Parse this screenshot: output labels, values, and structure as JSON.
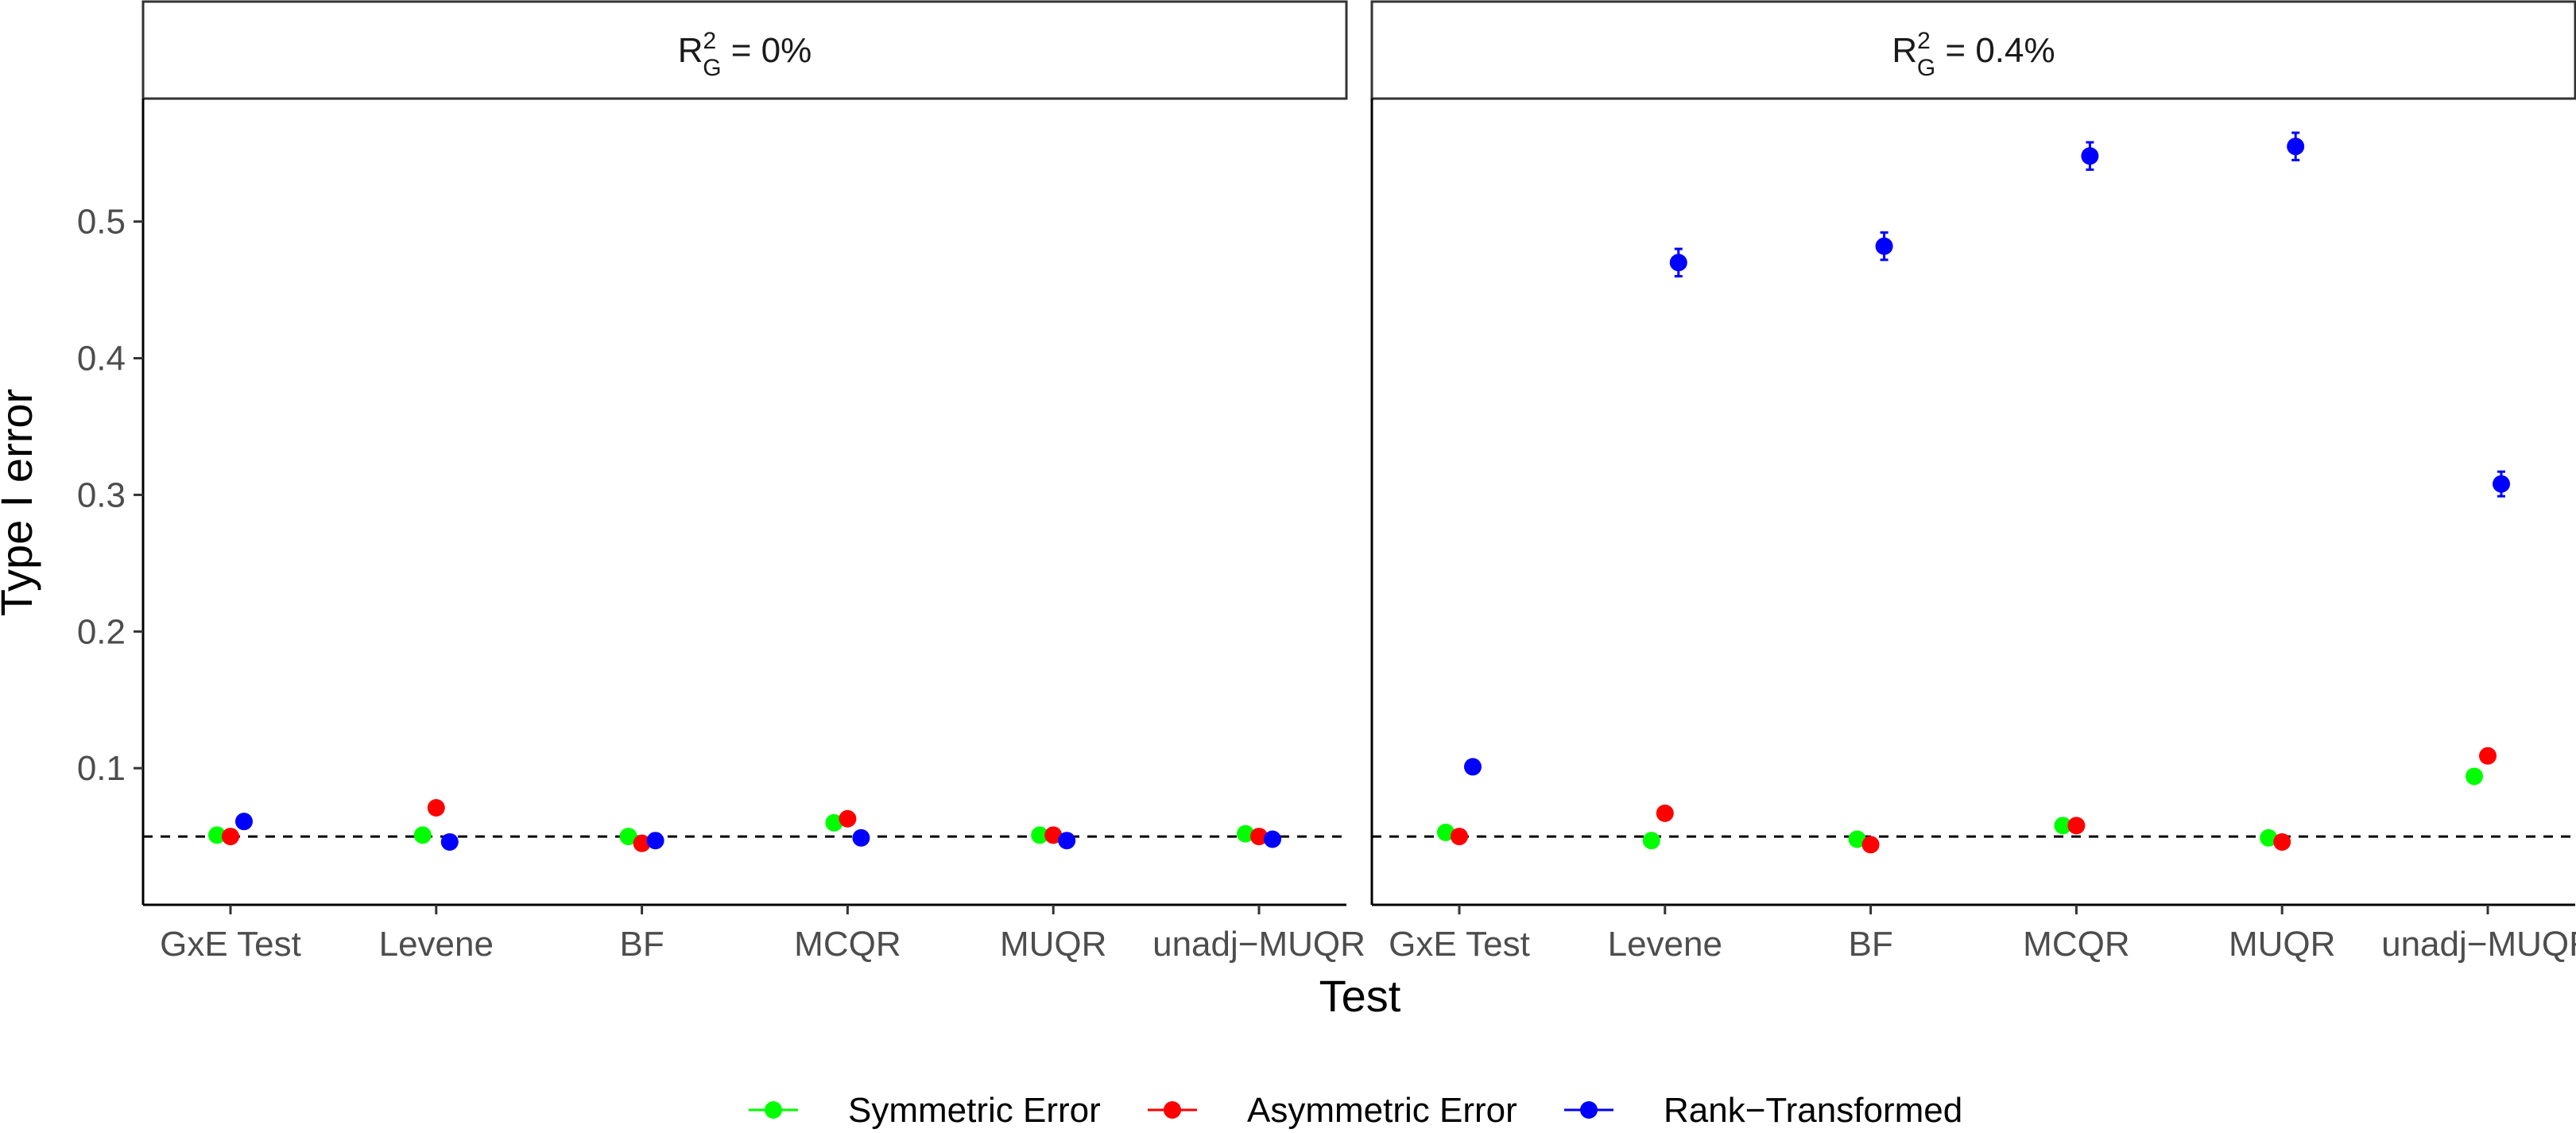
{
  "chart_data": {
    "type": "scatter",
    "xlabel": "Test",
    "ylabel": "Type I error",
    "ylim": [
      0.0,
      0.59
    ],
    "yticks": [
      0.1,
      0.2,
      0.3,
      0.4,
      0.5
    ],
    "reference_line": {
      "y": 0.05,
      "style": "dashed"
    },
    "categories": [
      "GxE Test",
      "Levene",
      "BF",
      "MCQR",
      "MUQR",
      "unadj−MUQR"
    ],
    "legend": {
      "placement": "bottom"
    },
    "series": [
      {
        "name": "Symmetric Error",
        "color": "#00ff00"
      },
      {
        "name": "Asymmetric Error",
        "color": "#ff0000"
      },
      {
        "name": "Rank−Transformed",
        "color": "#0000ff"
      }
    ],
    "panels": [
      {
        "label_base": "R",
        "label_sup": "2",
        "label_sub": "G",
        "label_rest": " = 0%",
        "values": [
          [
            0.051,
            0.05,
            0.061
          ],
          [
            0.051,
            0.071,
            0.046
          ],
          [
            0.05,
            0.045,
            0.047
          ],
          [
            0.06,
            0.063,
            0.049
          ],
          [
            0.051,
            0.051,
            0.047
          ],
          [
            0.052,
            0.05,
            0.048
          ]
        ],
        "errors": [
          [
            0,
            0,
            0
          ],
          [
            0,
            0,
            0
          ],
          [
            0,
            0,
            0
          ],
          [
            0,
            0,
            0
          ],
          [
            0,
            0,
            0
          ],
          [
            0,
            0,
            0
          ]
        ]
      },
      {
        "label_base": "R",
        "label_sup": "2",
        "label_sub": "G",
        "label_rest": " = 0.4%",
        "values": [
          [
            0.053,
            0.05,
            0.101
          ],
          [
            0.047,
            0.067,
            0.47
          ],
          [
            0.048,
            0.044,
            0.482
          ],
          [
            0.058,
            0.058,
            0.548
          ],
          [
            0.049,
            0.046,
            0.555
          ],
          [
            0.094,
            0.109,
            0.308
          ]
        ],
        "errors": [
          [
            0,
            0,
            0
          ],
          [
            0,
            0,
            0.01
          ],
          [
            0,
            0,
            0.01
          ],
          [
            0,
            0,
            0.01
          ],
          [
            0,
            0,
            0.01
          ],
          [
            0,
            0,
            0.009
          ]
        ]
      }
    ]
  }
}
